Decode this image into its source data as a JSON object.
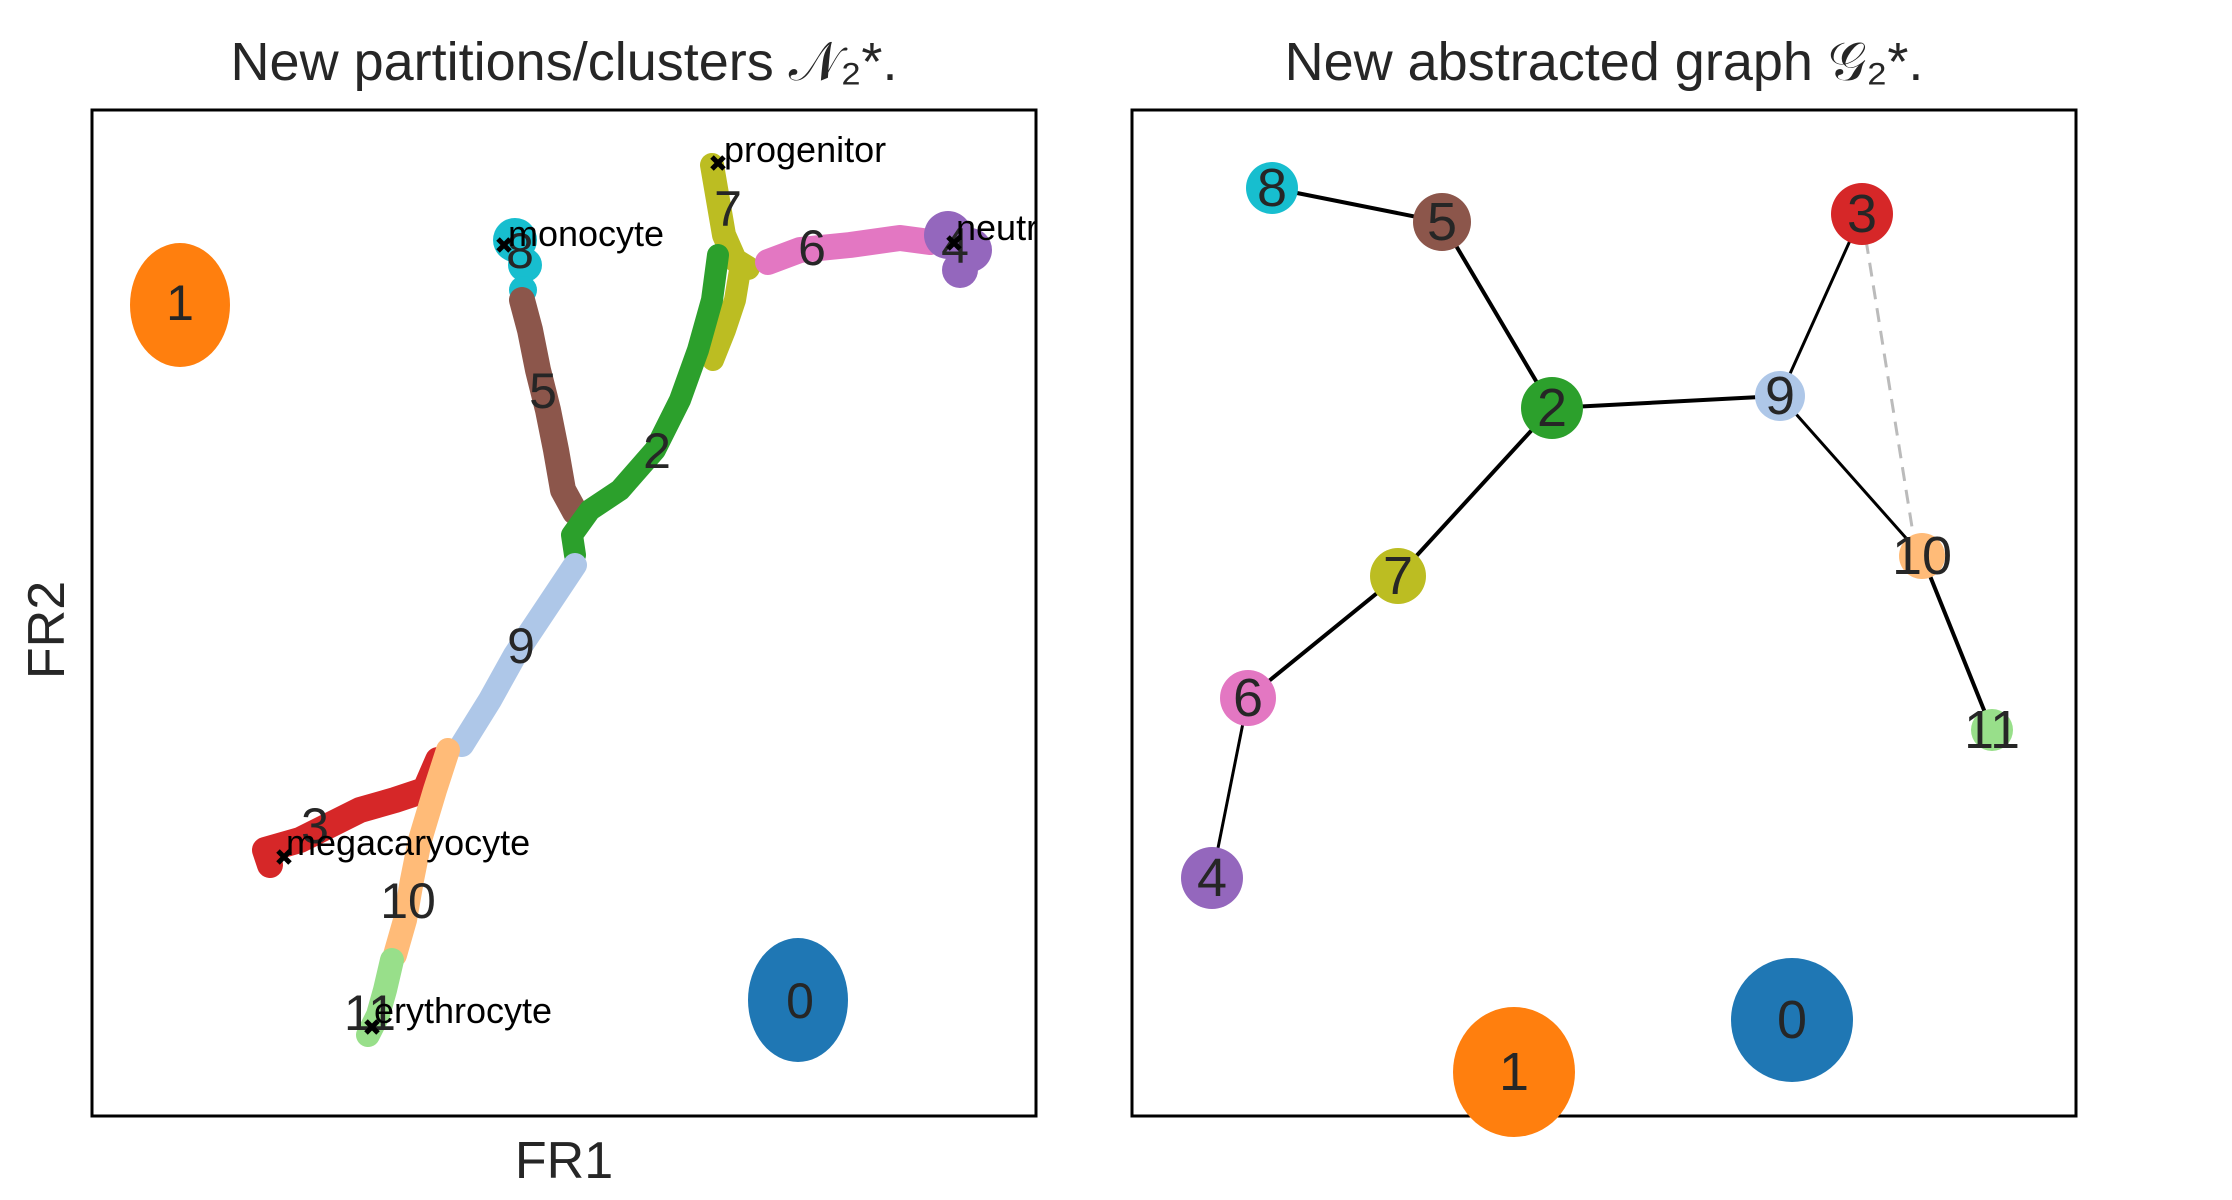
{
  "left_panel": {
    "title": "New partitions/clusters 𝒩₂*.",
    "xlabel": "FR1",
    "ylabel": "FR2",
    "cluster_labels": [
      {
        "id": "1",
        "label": "1",
        "color": "#ff7f0e"
      },
      {
        "id": "8",
        "label": "8",
        "color": "#17becf"
      },
      {
        "id": "5",
        "label": "5",
        "color": "#8c564b"
      },
      {
        "id": "7",
        "label": "7",
        "color": "#bcbd22"
      },
      {
        "id": "6",
        "label": "6",
        "color": "#e377c2"
      },
      {
        "id": "4",
        "label": "4",
        "color": "#9467bd"
      },
      {
        "id": "2",
        "label": "2",
        "color": "#2ca02c"
      },
      {
        "id": "9",
        "label": "9",
        "color": "#aec7e8"
      },
      {
        "id": "3",
        "label": "3",
        "color": "#d62728"
      },
      {
        "id": "10",
        "label": "10",
        "color": "#ffbb78"
      },
      {
        "id": "11",
        "label": "11",
        "color": "#98df8a"
      },
      {
        "id": "0",
        "label": "0",
        "color": "#1f77b4"
      }
    ],
    "annotations": [
      {
        "id": "progenitor",
        "label": "progenitor"
      },
      {
        "id": "monocyte",
        "label": "monocyte"
      },
      {
        "id": "neutrophil",
        "label": "neutrophi"
      },
      {
        "id": "megacaryocyte",
        "label": "megacaryocyte"
      },
      {
        "id": "erythrocyte",
        "label": "erythrocyte"
      }
    ]
  },
  "right_panel": {
    "title": "New abstracted graph 𝒢₂*.",
    "nodes": [
      {
        "id": "8",
        "label": "8",
        "color": "#17becf"
      },
      {
        "id": "5",
        "label": "5",
        "color": "#8c564b"
      },
      {
        "id": "3",
        "label": "3",
        "color": "#d62728"
      },
      {
        "id": "2",
        "label": "2",
        "color": "#2ca02c"
      },
      {
        "id": "9",
        "label": "9",
        "color": "#aec7e8"
      },
      {
        "id": "7",
        "label": "7",
        "color": "#bcbd22"
      },
      {
        "id": "10",
        "label": "10",
        "color": "#ffbb78"
      },
      {
        "id": "6",
        "label": "6",
        "color": "#e377c2"
      },
      {
        "id": "11",
        "label": "11",
        "color": "#98df8a"
      },
      {
        "id": "4",
        "label": "4",
        "color": "#9467bd"
      },
      {
        "id": "0",
        "label": "0",
        "color": "#1f77b4"
      },
      {
        "id": "1",
        "label": "1",
        "color": "#ff7f0e"
      }
    ],
    "edges": [
      {
        "from": "8",
        "to": "5",
        "style": "solid"
      },
      {
        "from": "5",
        "to": "2",
        "style": "solid"
      },
      {
        "from": "2",
        "to": "9",
        "style": "solid"
      },
      {
        "from": "9",
        "to": "3",
        "style": "solid"
      },
      {
        "from": "9",
        "to": "10",
        "style": "solid"
      },
      {
        "from": "10",
        "to": "11",
        "style": "solid"
      },
      {
        "from": "2",
        "to": "7",
        "style": "solid"
      },
      {
        "from": "7",
        "to": "6",
        "style": "solid"
      },
      {
        "from": "6",
        "to": "4",
        "style": "solid"
      },
      {
        "from": "3",
        "to": "10",
        "style": "dashed"
      }
    ]
  }
}
